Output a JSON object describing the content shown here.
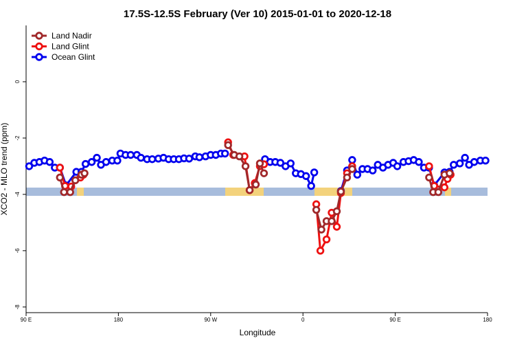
{
  "chart_data": {
    "type": "line",
    "title": "17.5S-12.5S February (Ver 10)   2015-01-01 to 2020-12-18",
    "xlabel": "Longitude",
    "ylabel": "XCO2 - MLO trend (ppm)",
    "xlim": [
      90,
      540
    ],
    "ylim": [
      -8.2,
      2
    ],
    "xticks": [
      {
        "value": 90,
        "label": "90 E"
      },
      {
        "value": 180,
        "label": "180"
      },
      {
        "value": 270,
        "label": "90 W"
      },
      {
        "value": 360,
        "label": "0"
      },
      {
        "value": 450,
        "label": "90 E"
      },
      {
        "value": 540,
        "label": "180"
      }
    ],
    "yticks": [
      0,
      -2,
      -4,
      -6,
      -8
    ],
    "legend": "top-left",
    "series": [
      {
        "name": "Land Nadir",
        "color": "#a0282a",
        "x": [
          123,
          127,
          133,
          138,
          144,
          147,
          240,
          287,
          293,
          298,
          304,
          308,
          314,
          318,
          322,
          390,
          373,
          378,
          383,
          388,
          393,
          397,
          403,
          408,
          450,
          483,
          487,
          492,
          498,
          503
        ],
        "values": [
          -3.4,
          -3.92,
          -3.92,
          -3.5,
          -3.3,
          -3.25,
          null,
          -2.25,
          -2.6,
          -2.65,
          -3.0,
          -3.85,
          -3.65,
          -2.9,
          -3.25,
          null,
          -4.55,
          -5.25,
          -4.95,
          -4.95,
          -4.6,
          -3.9,
          -3.4,
          -3.1,
          null,
          -3.4,
          -3.92,
          -3.92,
          -3.3,
          -3.25
        ]
      },
      {
        "name": "Land Glint",
        "color": "#ee1111",
        "x": [
          123,
          128,
          134,
          143,
          146,
          240,
          287,
          292,
          303,
          308,
          313,
          318,
          322,
          390,
          373,
          377,
          383,
          388,
          393,
          397,
          403,
          408,
          450,
          483,
          488,
          498,
          501,
          504
        ],
        "values": [
          -3.05,
          -3.7,
          -3.72,
          -3.4,
          -3.3,
          null,
          -2.15,
          -2.6,
          -2.65,
          -3.85,
          -3.6,
          -3.0,
          -2.93,
          null,
          -4.35,
          -6.0,
          -5.6,
          -4.65,
          -5.15,
          -3.95,
          -3.25,
          -3.0,
          null,
          -3.0,
          -3.7,
          -3.75,
          -3.45,
          -3.3
        ]
      },
      {
        "name": "Ocean Glint",
        "color": "#0000ee",
        "x": [
          93,
          98,
          103,
          108,
          113,
          118,
          123,
          129,
          139,
          144,
          148,
          154,
          159,
          163,
          168,
          174,
          179,
          182,
          187,
          192,
          198,
          202,
          208,
          213,
          219,
          224,
          229,
          234,
          239,
          244,
          249,
          255,
          259,
          265,
          270,
          275,
          280,
          284,
          300,
          323,
          328,
          333,
          338,
          343,
          348,
          353,
          358,
          363,
          368,
          371,
          385,
          397,
          403,
          408,
          413,
          418,
          423,
          428,
          433,
          438,
          443,
          448,
          452,
          458,
          463,
          468,
          473,
          478,
          483,
          488,
          498,
          503,
          507,
          513,
          518,
          522,
          527,
          533,
          538
        ],
        "values": [
          -3.0,
          -2.88,
          -2.85,
          -2.8,
          -2.85,
          -3.05,
          -3.05,
          -3.68,
          -3.2,
          -3.2,
          -2.92,
          -2.85,
          -2.7,
          -2.95,
          -2.85,
          -2.8,
          -2.8,
          -2.55,
          -2.6,
          -2.6,
          -2.6,
          -2.7,
          -2.75,
          -2.75,
          -2.73,
          -2.7,
          -2.75,
          -2.75,
          -2.75,
          -2.72,
          -2.73,
          -2.65,
          -2.68,
          -2.65,
          -2.6,
          -2.6,
          -2.55,
          -2.55,
          null,
          -2.75,
          -2.85,
          -2.85,
          -2.88,
          -3.0,
          -2.9,
          -3.25,
          -3.28,
          -3.35,
          -3.7,
          -3.22,
          null,
          -3.88,
          -3.15,
          -2.78,
          -3.3,
          -3.1,
          -3.1,
          -3.15,
          -2.95,
          -3.05,
          -2.95,
          -2.88,
          -3.0,
          -2.85,
          -2.82,
          -2.78,
          -2.85,
          -3.05,
          -3.05,
          -3.68,
          -3.22,
          -3.2,
          -2.95,
          -2.9,
          -2.7,
          -2.95,
          -2.85,
          -2.8,
          -2.8
        ]
      }
    ]
  }
}
